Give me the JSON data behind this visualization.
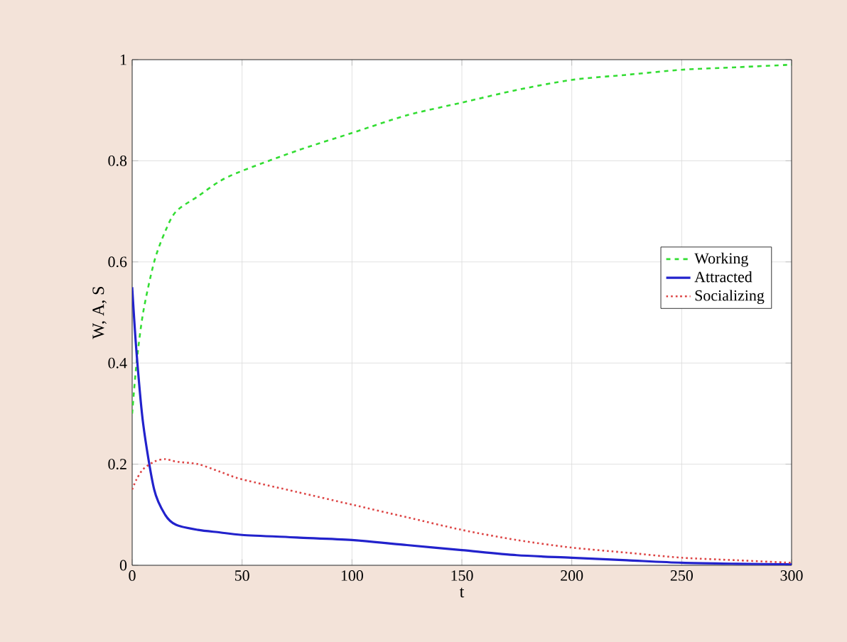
{
  "chart_data": {
    "type": "line",
    "xlabel": "t",
    "ylabel": "W, A, S",
    "xlim": [
      0,
      300
    ],
    "ylim": [
      0,
      1
    ],
    "xticks": [
      0,
      50,
      100,
      150,
      200,
      250,
      300
    ],
    "yticks": [
      0,
      0.2,
      0.4,
      0.6,
      0.8,
      1
    ],
    "grid": true,
    "legend": "right",
    "marker": "none",
    "x": [
      0,
      2,
      5,
      10,
      15,
      20,
      30,
      40,
      50,
      75,
      100,
      125,
      150,
      175,
      200,
      225,
      250,
      275,
      300
    ],
    "series": [
      {
        "name": "Working",
        "color": "#33dd33",
        "line_style": "dashed",
        "values": [
          0.3,
          0.4,
          0.5,
          0.6,
          0.66,
          0.7,
          0.73,
          0.76,
          0.78,
          0.82,
          0.855,
          0.89,
          0.915,
          0.94,
          0.96,
          0.97,
          0.98,
          0.985,
          0.99
        ]
      },
      {
        "name": "Attracted",
        "color": "#2222cc",
        "line_style": "solid",
        "values": [
          0.55,
          0.42,
          0.28,
          0.15,
          0.1,
          0.08,
          0.07,
          0.065,
          0.06,
          0.055,
          0.05,
          0.04,
          0.03,
          0.02,
          0.015,
          0.01,
          0.005,
          0.003,
          0.002
        ]
      },
      {
        "name": "Socializing",
        "color": "#dd4444",
        "line_style": "dotted",
        "values": [
          0.15,
          0.17,
          0.19,
          0.205,
          0.21,
          0.205,
          0.2,
          0.185,
          0.17,
          0.145,
          0.12,
          0.095,
          0.07,
          0.05,
          0.035,
          0.025,
          0.015,
          0.01,
          0.005
        ]
      }
    ]
  }
}
